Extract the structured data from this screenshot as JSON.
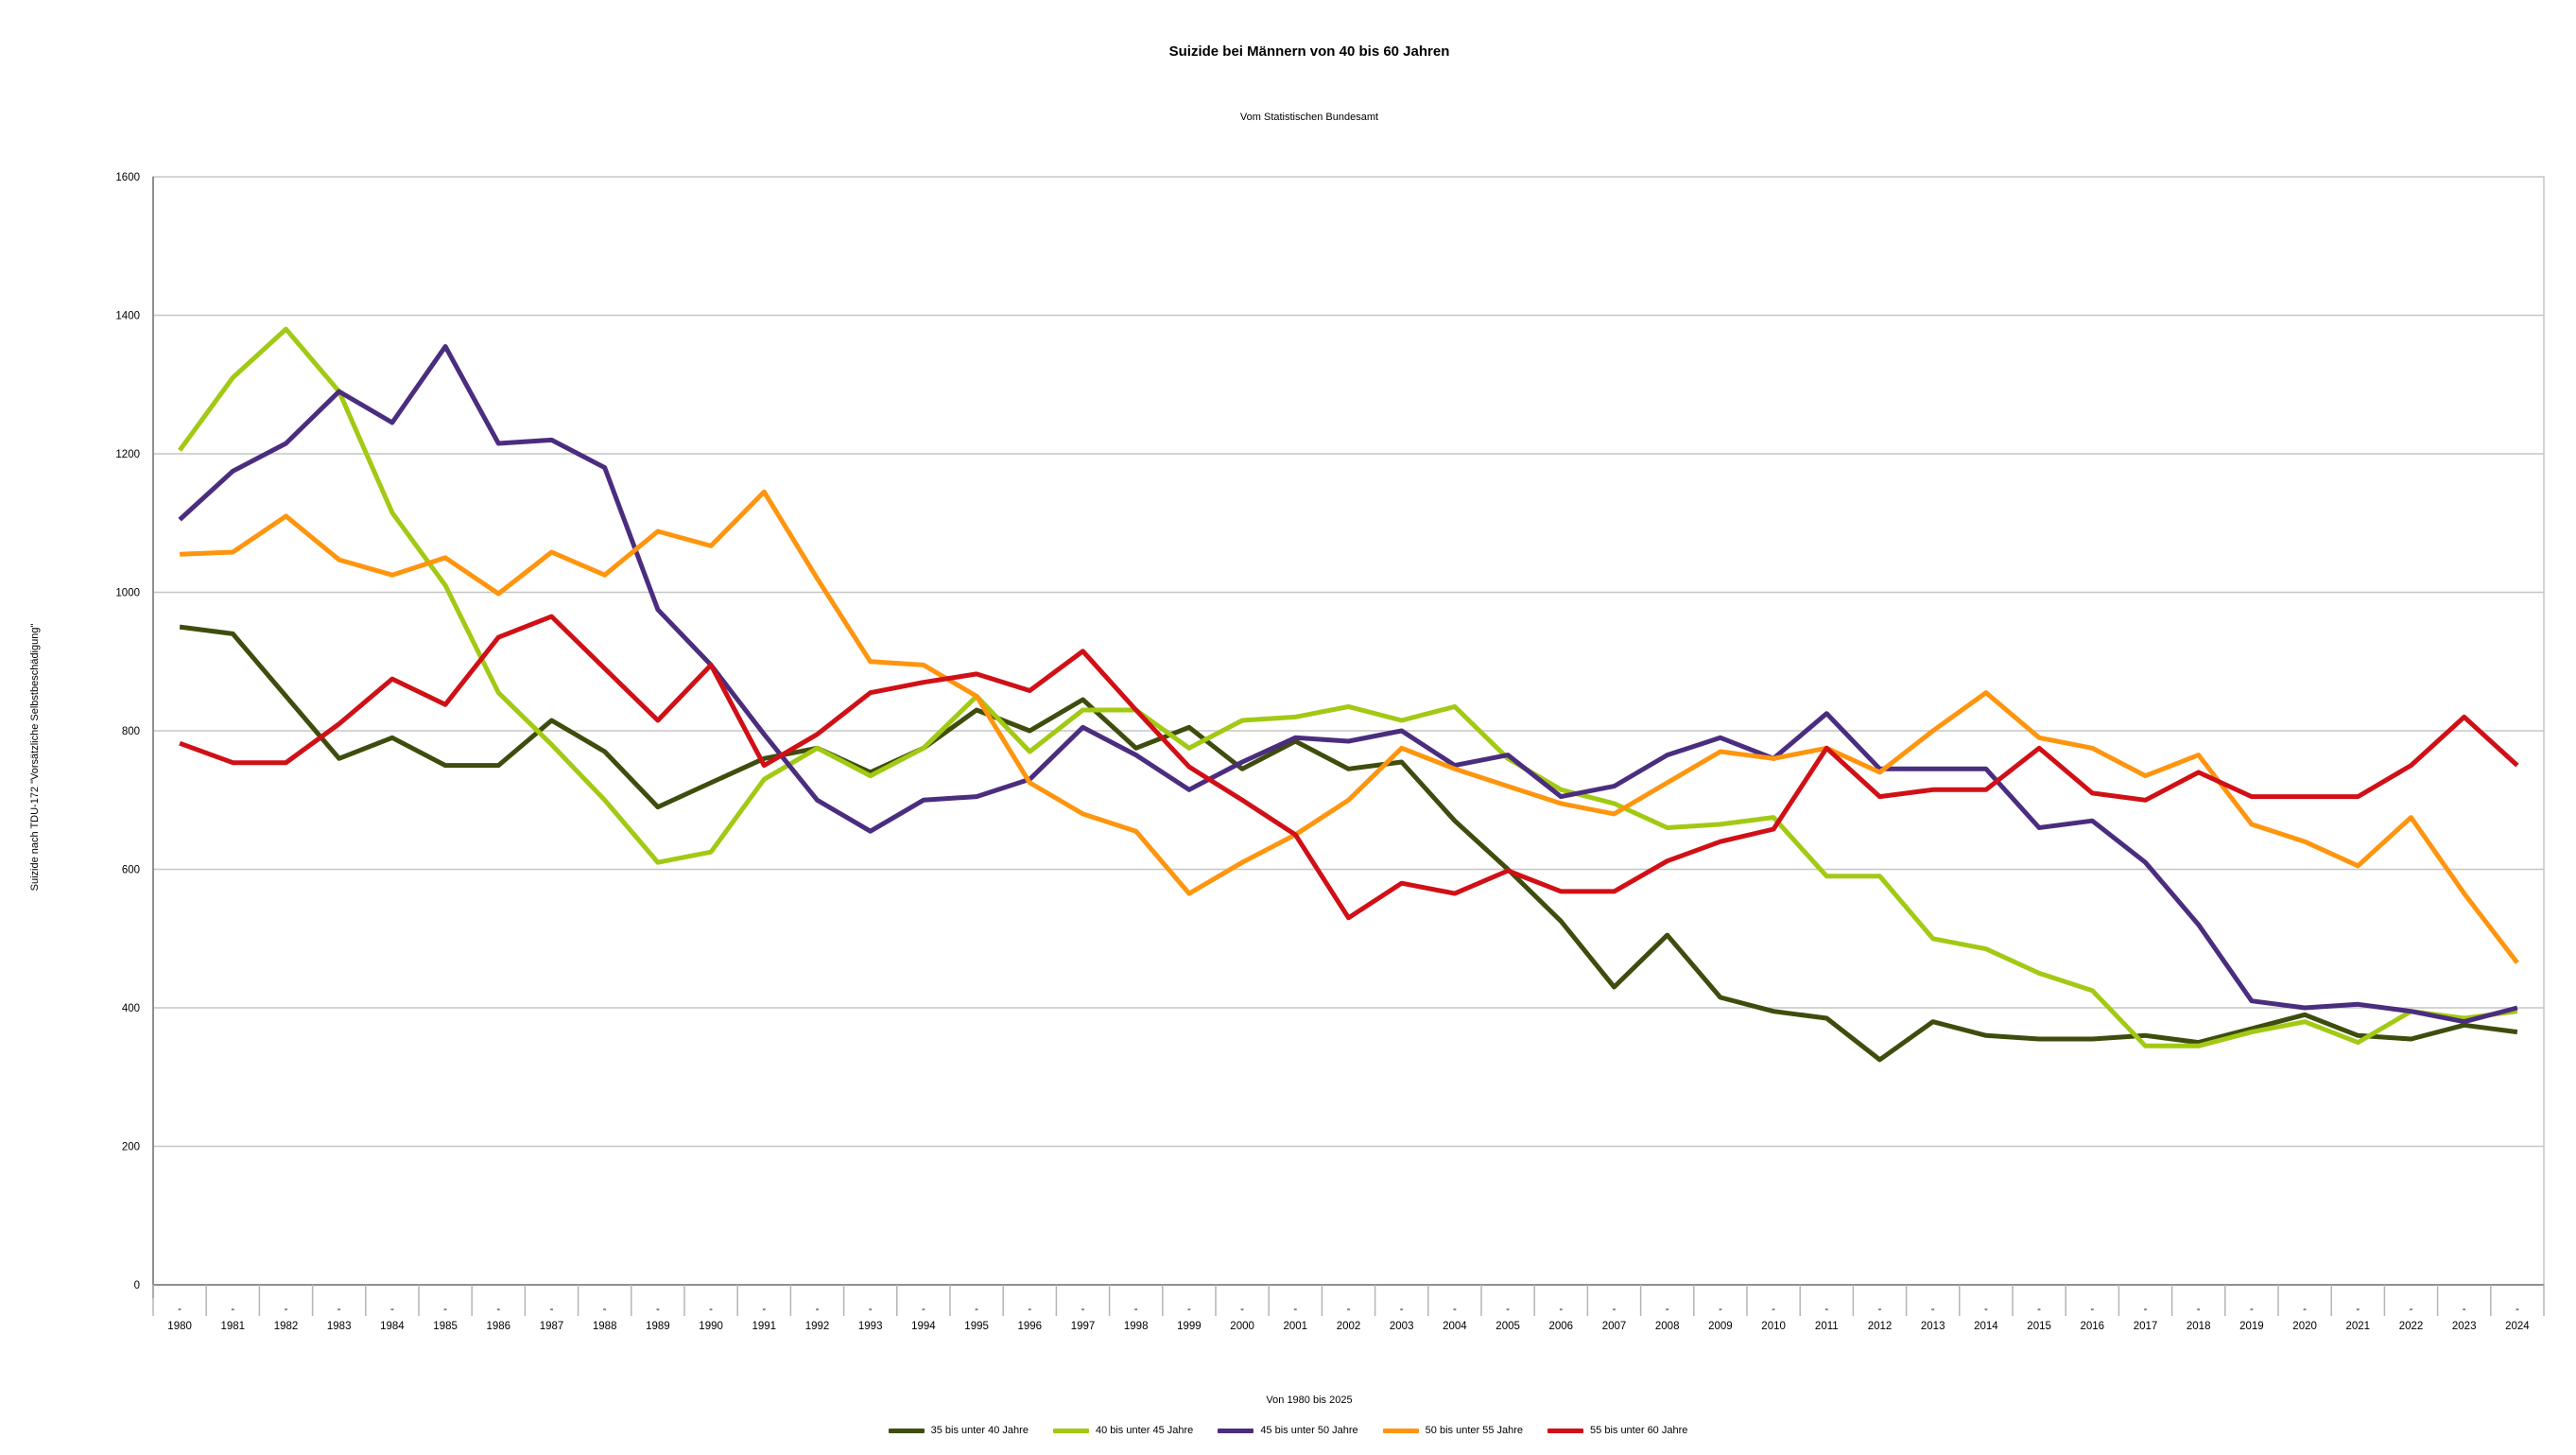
{
  "chart_data": {
    "type": "line",
    "title": "Suizide bei Männern von 40 bis 60 Jahren",
    "subtitle": "Vom Statistischen Bundesamt",
    "ylabel": "Suizide nach TDU-172 \"Vorsätzliche Selbstbeschädigung\"",
    "xlabel": "Von 1980 bis 2025",
    "x_tick_prefix": "-",
    "categories": [
      "1980",
      "1981",
      "1982",
      "1983",
      "1984",
      "1985",
      "1986",
      "1987",
      "1988",
      "1989",
      "1990",
      "1991",
      "1992",
      "1993",
      "1994",
      "1995",
      "1996",
      "1997",
      "1998",
      "1999",
      "2000",
      "2001",
      "2002",
      "2003",
      "2004",
      "2005",
      "2006",
      "2007",
      "2008",
      "2009",
      "2010",
      "2011",
      "2012",
      "2013",
      "2014",
      "2015",
      "2016",
      "2017",
      "2018",
      "2019",
      "2020",
      "2021",
      "2022",
      "2023",
      "2024"
    ],
    "ylim": [
      0,
      1600
    ],
    "ytick_step": 200,
    "grid": "horizontal",
    "legend_position": "bottom",
    "colors": {
      "grid": "#c6c6c6",
      "axis": "#8f8f8f",
      "tick": "#b5b5b5",
      "text": "#000000"
    },
    "series": [
      {
        "name": "35 bis unter 40 Jahre",
        "color": "#3e4d0d",
        "values": [
          950,
          940,
          850,
          760,
          790,
          750,
          750,
          815,
          770,
          690,
          725,
          760,
          775,
          740,
          775,
          830,
          800,
          845,
          775,
          805,
          745,
          785,
          745,
          755,
          670,
          600,
          525,
          430,
          505,
          415,
          395,
          385,
          325,
          380,
          360,
          355,
          355,
          360,
          350,
          370,
          390,
          360,
          355,
          375,
          365
        ]
      },
      {
        "name": "40 bis unter 45 Jahre",
        "color": "#a2c913",
        "values": [
          1205,
          1310,
          1380,
          1290,
          1115,
          1010,
          855,
          780,
          700,
          610,
          625,
          730,
          775,
          735,
          775,
          850,
          770,
          830,
          830,
          775,
          815,
          820,
          835,
          815,
          835,
          760,
          715,
          695,
          660,
          665,
          675,
          590,
          590,
          500,
          485,
          450,
          425,
          345,
          345,
          365,
          380,
          350,
          395,
          385,
          395
        ]
      },
      {
        "name": "45 bis unter 50 Jahre",
        "color": "#4b2d7f",
        "values": [
          1105,
          1175,
          1215,
          1290,
          1245,
          1355,
          1215,
          1220,
          1180,
          975,
          895,
          795,
          700,
          655,
          700,
          705,
          730,
          805,
          765,
          715,
          755,
          790,
          785,
          800,
          750,
          765,
          705,
          720,
          765,
          790,
          760,
          825,
          745,
          745,
          745,
          660,
          670,
          610,
          520,
          410,
          400,
          405,
          395,
          380,
          400
        ]
      },
      {
        "name": "50 bis unter 55 Jahre",
        "color": "#ff950e",
        "values": [
          1055,
          1058,
          1110,
          1047,
          1025,
          1050,
          998,
          1058,
          1025,
          1088,
          1067,
          1145,
          1020,
          900,
          895,
          850,
          725,
          680,
          655,
          565,
          610,
          650,
          700,
          775,
          745,
          720,
          695,
          680,
          725,
          770,
          760,
          775,
          740,
          800,
          855,
          790,
          775,
          735,
          765,
          665,
          640,
          605,
          675,
          565,
          465
        ]
      },
      {
        "name": "55 bis unter 60 Jahre",
        "color": "#d01016",
        "values": [
          782,
          754,
          754,
          810,
          875,
          838,
          935,
          965,
          890,
          815,
          895,
          750,
          795,
          855,
          870,
          882,
          858,
          915,
          830,
          748,
          700,
          650,
          530,
          580,
          565,
          598,
          568,
          568,
          612,
          640,
          658,
          775,
          705,
          715,
          715,
          775,
          710,
          700,
          740,
          705,
          705,
          705,
          750,
          820,
          750
        ]
      }
    ]
  }
}
